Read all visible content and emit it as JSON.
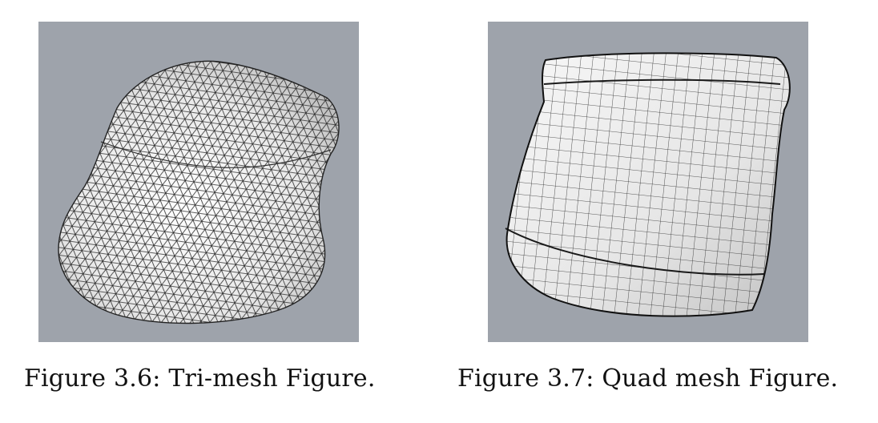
{
  "figures": [
    {
      "caption": "Figure 3.6: Tri-mesh Figure.",
      "background_color": "#9ea3ab",
      "mesh_type": "triangle"
    },
    {
      "caption": "Figure 3.7: Quad mesh Figure.",
      "background_color": "#9ea3ab",
      "mesh_type": "quad"
    }
  ]
}
